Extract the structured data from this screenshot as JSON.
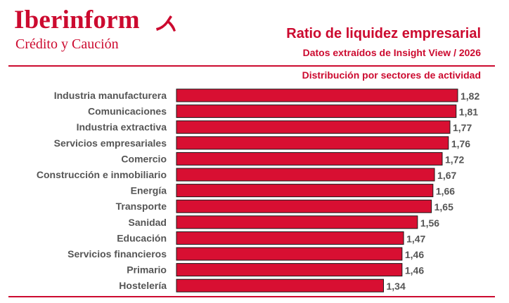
{
  "brand": {
    "name": "Iberinform",
    "subtitle": "Crédito y Caución"
  },
  "colors": {
    "accent": "#cc0a2f",
    "bar": "#d80f32",
    "bar_outline": "#1a1a1a",
    "text": "#555555"
  },
  "chart_data": {
    "type": "bar",
    "orientation": "horizontal",
    "title": "Ratio de liquidez empresarial",
    "subtitle": "Datos extraídos de Insight View / 2026",
    "section_label": "Distribución por sectores de actividad",
    "categories": [
      "Industria manufacturera",
      "Comunicaciones",
      "Industria extractiva",
      "Servicios empresariales",
      "Comercio",
      "Construcción e inmobiliario",
      "Energía",
      "Transporte",
      "Sanidad",
      "Educación",
      "Servicios financieros",
      "Primario",
      "Hostelería"
    ],
    "values": [
      1.82,
      1.81,
      1.77,
      1.76,
      1.72,
      1.67,
      1.66,
      1.65,
      1.56,
      1.47,
      1.46,
      1.46,
      1.34
    ],
    "value_labels": [
      "1,82",
      "1,81",
      "1,77",
      "1,76",
      "1,72",
      "1,67",
      "1,66",
      "1,65",
      "1,56",
      "1,47",
      "1,46",
      "1,46",
      "1,34"
    ],
    "xlim": [
      0,
      1.82
    ],
    "xlabel": "",
    "ylabel": "",
    "grid": false,
    "legend": "none"
  }
}
